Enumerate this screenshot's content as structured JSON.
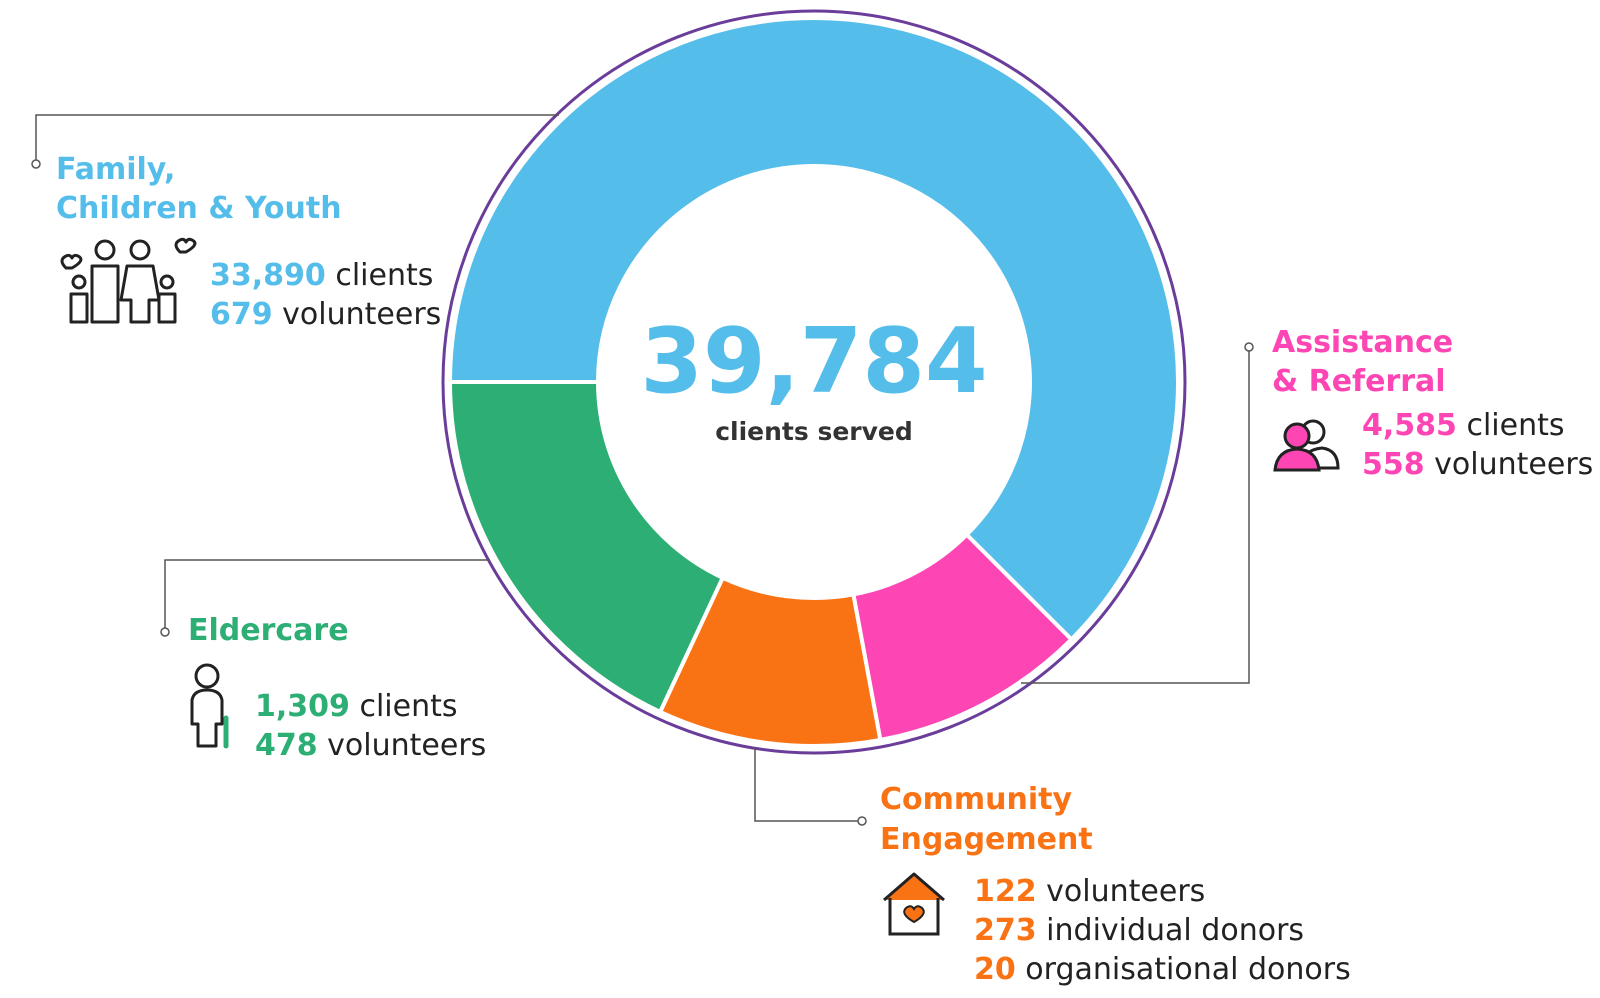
{
  "center": {
    "number": "39,784",
    "label": "clients served"
  },
  "sections": [
    {
      "title": [
        "Family,",
        "Children & Youth"
      ],
      "stats": [
        {
          "value": "33,890",
          "label": "clients"
        },
        {
          "value": "679",
          "label": "volunteers"
        }
      ]
    },
    {
      "title": [
        "Assistance",
        "& Referral"
      ],
      "stats": [
        {
          "value": "4,585",
          "label": "clients"
        },
        {
          "value": "558",
          "label": "volunteers"
        }
      ]
    },
    {
      "title": [
        "Eldercare"
      ],
      "stats": [
        {
          "value": "1,309",
          "label": "clients"
        },
        {
          "value": "478",
          "label": "volunteers"
        }
      ]
    },
    {
      "title": [
        "Community",
        "Engagement"
      ],
      "stats": [
        {
          "value": "122",
          "label": "volunteers"
        },
        {
          "value": "273",
          "label": "individual donors"
        },
        {
          "value": "20",
          "label": "organisational donors"
        }
      ]
    }
  ]
}
